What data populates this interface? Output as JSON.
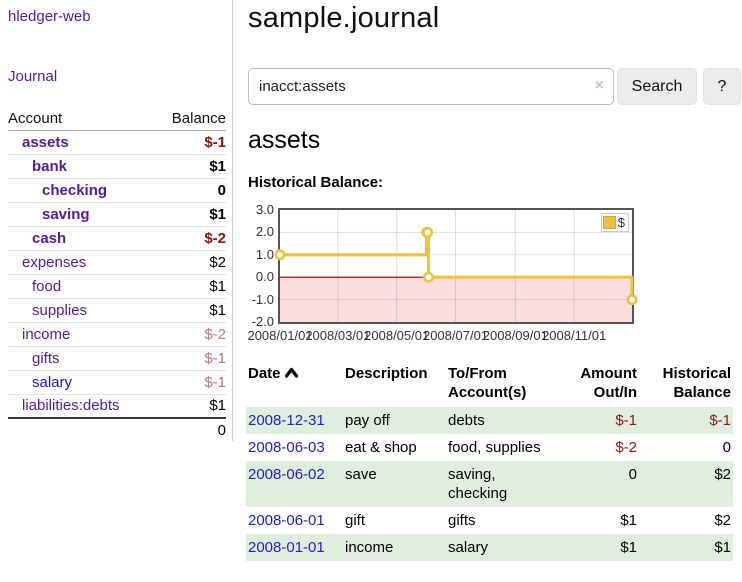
{
  "app": {
    "title": "hledger-web"
  },
  "colors": {
    "link_purple": "#551a9d",
    "link_blue": "#1414e0",
    "date_link_blue": "#2020cc",
    "negative_dark": "#8e1505",
    "negative_light": "#c17676",
    "table_negative": "#8e1a10",
    "row_stripe_green": "#dfeedd",
    "chart_series_gold": "#edc240",
    "chart_negative_fill": "#fbdddd",
    "chart_zero_line": "#8b0000"
  },
  "sidebar": {
    "nav_journal": "Journal",
    "accounts_table": {
      "headers": {
        "account": "Account",
        "balance": "Balance"
      },
      "rows": [
        {
          "name": "assets",
          "depth": 0,
          "bold": true,
          "balance": "$-1",
          "neg": "dark"
        },
        {
          "name": "bank",
          "depth": 1,
          "bold": true,
          "balance": "$1"
        },
        {
          "name": "checking",
          "depth": 2,
          "bold": true,
          "balance": "0"
        },
        {
          "name": "saving",
          "depth": 2,
          "bold": true,
          "balance": "$1"
        },
        {
          "name": "cash",
          "depth": 1,
          "bold": true,
          "balance": "$-2",
          "neg": "dark"
        },
        {
          "name": "expenses",
          "depth": 0,
          "bold": false,
          "balance": "$2"
        },
        {
          "name": "food",
          "depth": 1,
          "bold": false,
          "balance": "$1"
        },
        {
          "name": "supplies",
          "depth": 1,
          "bold": false,
          "balance": "$1"
        },
        {
          "name": "income",
          "depth": 0,
          "bold": false,
          "balance": "$-2",
          "neg": "light"
        },
        {
          "name": "gifts",
          "depth": 1,
          "bold": false,
          "balance": "$-1",
          "neg": "light"
        },
        {
          "name": "salary",
          "depth": 1,
          "bold": false,
          "balance": "$-1",
          "neg": "light",
          "link_color": "blue"
        },
        {
          "name": "liabilities:debts",
          "depth": 0,
          "bold": false,
          "balance": "$1"
        }
      ],
      "total": "0"
    }
  },
  "main": {
    "title": "sample.journal",
    "search": {
      "value": "inacct:assets",
      "clear_icon": "×",
      "button_label": "Search",
      "help_label": "?"
    },
    "section_title": "assets",
    "chart_label": "Historical Balance:"
  },
  "chart_data": {
    "type": "line",
    "title": "Historical Balance:",
    "series": [
      {
        "name": "$",
        "color": "#edc240",
        "steps": true,
        "points": [
          [
            "2008/01/01",
            1
          ],
          [
            "2008/06/01",
            2
          ],
          [
            "2008/06/02",
            2
          ],
          [
            "2008/06/03",
            0
          ],
          [
            "2008/12/31",
            -1
          ]
        ]
      }
    ],
    "x_range": [
      "2008/01/01",
      "2008/12/31"
    ],
    "y_range": [
      -2,
      3
    ],
    "x_ticks": [
      "2008/01/01",
      "2008/03/01",
      "2008/05/01",
      "2008/07/01",
      "2008/09/01",
      "2008/11/01"
    ],
    "y_ticks": [
      "3.0",
      "2.0",
      "1.0",
      "0.0",
      "-1.0",
      "-2.0"
    ],
    "legend_position": "top-right",
    "grid": true
  },
  "register_table": {
    "headers": [
      {
        "lines": [
          "Date"
        ],
        "align": "left",
        "sorted": "asc"
      },
      {
        "lines": [
          "Description"
        ],
        "align": "left"
      },
      {
        "lines": [
          "To/From",
          "Account(s)"
        ],
        "align": "left"
      },
      {
        "lines": [
          "Amount",
          "Out/In"
        ],
        "align": "right"
      },
      {
        "lines": [
          "Historical",
          "Balance"
        ],
        "align": "right"
      }
    ],
    "rows": [
      {
        "date": "2008-12-31",
        "description": "pay off",
        "accounts": "debts",
        "amount": "$-1",
        "amount_neg": true,
        "balance": "$-1",
        "balance_neg": true
      },
      {
        "date": "2008-06-03",
        "description": "eat & shop",
        "accounts": "food, supplies",
        "amount": "$-2",
        "amount_neg": true,
        "balance": "0",
        "balance_neg": false
      },
      {
        "date": "2008-06-02",
        "description": "save",
        "accounts": "saving, checking",
        "amount": "0",
        "amount_neg": false,
        "balance": "$2",
        "balance_neg": false
      },
      {
        "date": "2008-06-01",
        "description": "gift",
        "accounts": "gifts",
        "amount": "$1",
        "amount_neg": false,
        "balance": "$2",
        "balance_neg": false
      },
      {
        "date": "2008-01-01",
        "description": "income",
        "accounts": "salary",
        "amount": "$1",
        "amount_neg": false,
        "balance": "$1",
        "balance_neg": false
      }
    ]
  }
}
